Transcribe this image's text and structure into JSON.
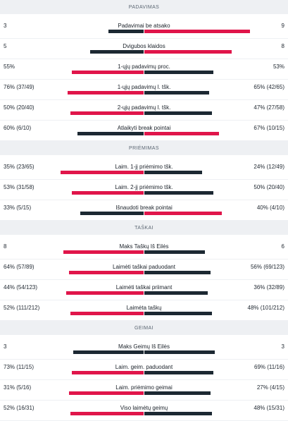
{
  "colors": {
    "winner": "#e0154a",
    "loser": "#1c2832"
  },
  "sections": [
    {
      "title": "PADAVIMAS",
      "rows": [
        {
          "label": "Padavimai be atsako",
          "left": "3",
          "right": "9",
          "left_fraction": 0.25,
          "right_fraction": 0.75,
          "winner": "right"
        },
        {
          "label": "Dvigubos klaidos",
          "left": "5",
          "right": "8",
          "left_fraction": 0.38,
          "right_fraction": 0.62,
          "winner": "right"
        },
        {
          "label": "1-ųjų padavimų proc.",
          "left": "55%",
          "right": "53%",
          "left_fraction": 0.51,
          "right_fraction": 0.49,
          "winner": "left"
        },
        {
          "label": "1-ųjų padavimų l. tšk.",
          "left": "76% (37/49)",
          "right": "65% (42/65)",
          "left_fraction": 0.54,
          "right_fraction": 0.46,
          "winner": "left"
        },
        {
          "label": "2-ųjų padavimų l. tšk.",
          "left": "50% (20/40)",
          "right": "47% (27/58)",
          "left_fraction": 0.52,
          "right_fraction": 0.48,
          "winner": "left"
        },
        {
          "label": "Atlaikyti break pointai",
          "left": "60% (6/10)",
          "right": "67% (10/15)",
          "left_fraction": 0.47,
          "right_fraction": 0.53,
          "winner": "right"
        }
      ]
    },
    {
      "title": "PRIĖMIMAS",
      "rows": [
        {
          "label": "Laim. 1-jį priėmimo tšk.",
          "left": "35% (23/65)",
          "right": "24% (12/49)",
          "left_fraction": 0.59,
          "right_fraction": 0.41,
          "winner": "left"
        },
        {
          "label": "Laim. 2-jį priėmimo tšk.",
          "left": "53% (31/58)",
          "right": "50% (20/40)",
          "left_fraction": 0.51,
          "right_fraction": 0.49,
          "winner": "left"
        },
        {
          "label": "Išnaudoti break pointai",
          "left": "33% (5/15)",
          "right": "40% (4/10)",
          "left_fraction": 0.45,
          "right_fraction": 0.55,
          "winner": "right"
        }
      ]
    },
    {
      "title": "TAŠKAI",
      "rows": [
        {
          "label": "Maks Taškų Iš Eilės",
          "left": "8",
          "right": "6",
          "left_fraction": 0.57,
          "right_fraction": 0.43,
          "winner": "left"
        },
        {
          "label": "Laimėti taškai paduodant",
          "left": "64% (57/89)",
          "right": "56% (69/123)",
          "left_fraction": 0.53,
          "right_fraction": 0.47,
          "winner": "left"
        },
        {
          "label": "Laimėti taškai priimant",
          "left": "44% (54/123)",
          "right": "36% (32/89)",
          "left_fraction": 0.55,
          "right_fraction": 0.45,
          "winner": "left"
        },
        {
          "label": "Laimėta taškų",
          "left": "52% (111/212)",
          "right": "48% (101/212)",
          "left_fraction": 0.52,
          "right_fraction": 0.48,
          "winner": "left"
        }
      ]
    },
    {
      "title": "GEIMAI",
      "rows": [
        {
          "label": "Maks Geimų Iš Eilės",
          "left": "3",
          "right": "3",
          "left_fraction": 0.5,
          "right_fraction": 0.5,
          "winner": "none"
        },
        {
          "label": "Laim. geim. paduodant",
          "left": "73% (11/15)",
          "right": "69% (11/16)",
          "left_fraction": 0.51,
          "right_fraction": 0.49,
          "winner": "left"
        },
        {
          "label": "Laim. priėmimo geimai",
          "left": "31% (5/16)",
          "right": "27% (4/15)",
          "left_fraction": 0.53,
          "right_fraction": 0.47,
          "winner": "left"
        },
        {
          "label": "Viso laimėtų geimų",
          "left": "52% (16/31)",
          "right": "48% (15/31)",
          "left_fraction": 0.52,
          "right_fraction": 0.48,
          "winner": "left"
        }
      ]
    }
  ]
}
